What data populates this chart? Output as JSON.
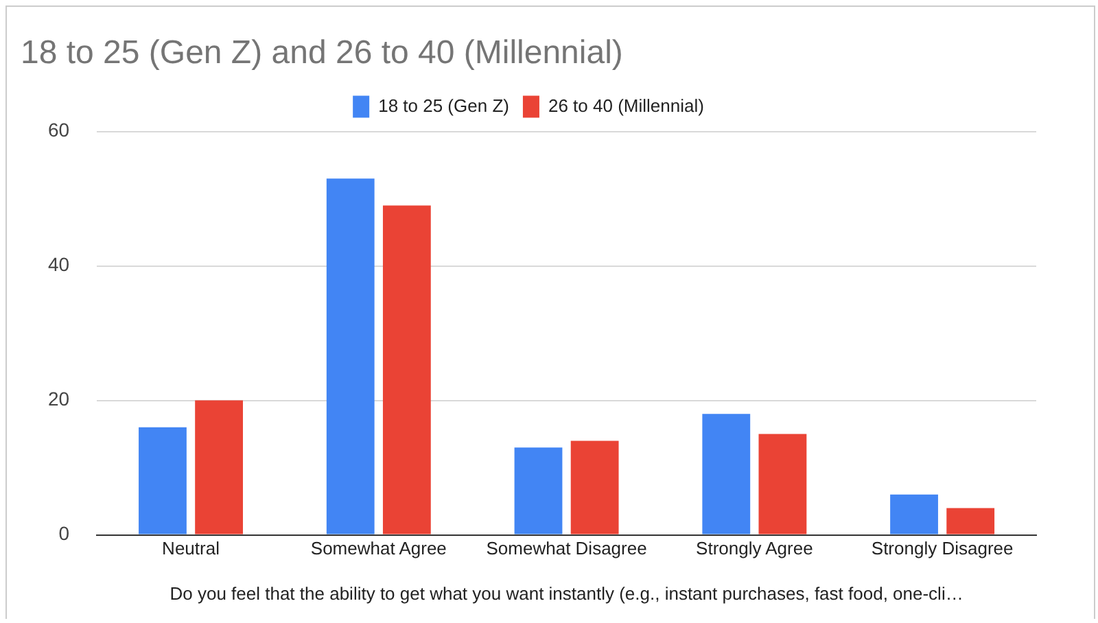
{
  "chart_data": {
    "type": "bar",
    "title": "18 to 25 (Gen Z) and 26 to 40 (Millennial)",
    "xlabel": "Do you feel that the ability to get what you want instantly (e.g., instant purchases, fast food, one-cli…",
    "categories": [
      "Neutral",
      "Somewhat Agree",
      "Somewhat Disagree",
      "Strongly Agree",
      "Strongly Disagree"
    ],
    "series": [
      {
        "name": "18 to 25 (Gen Z)",
        "color": "#4285f4",
        "values": [
          16,
          53,
          13,
          18,
          6
        ]
      },
      {
        "name": "26 to 40 (Millennial)",
        "color": "#ea4335",
        "values": [
          20,
          49,
          14,
          15,
          4
        ]
      }
    ],
    "ylim": [
      0,
      60
    ],
    "yticks": [
      0,
      20,
      40,
      60
    ],
    "grid": "y",
    "legend": "top"
  }
}
